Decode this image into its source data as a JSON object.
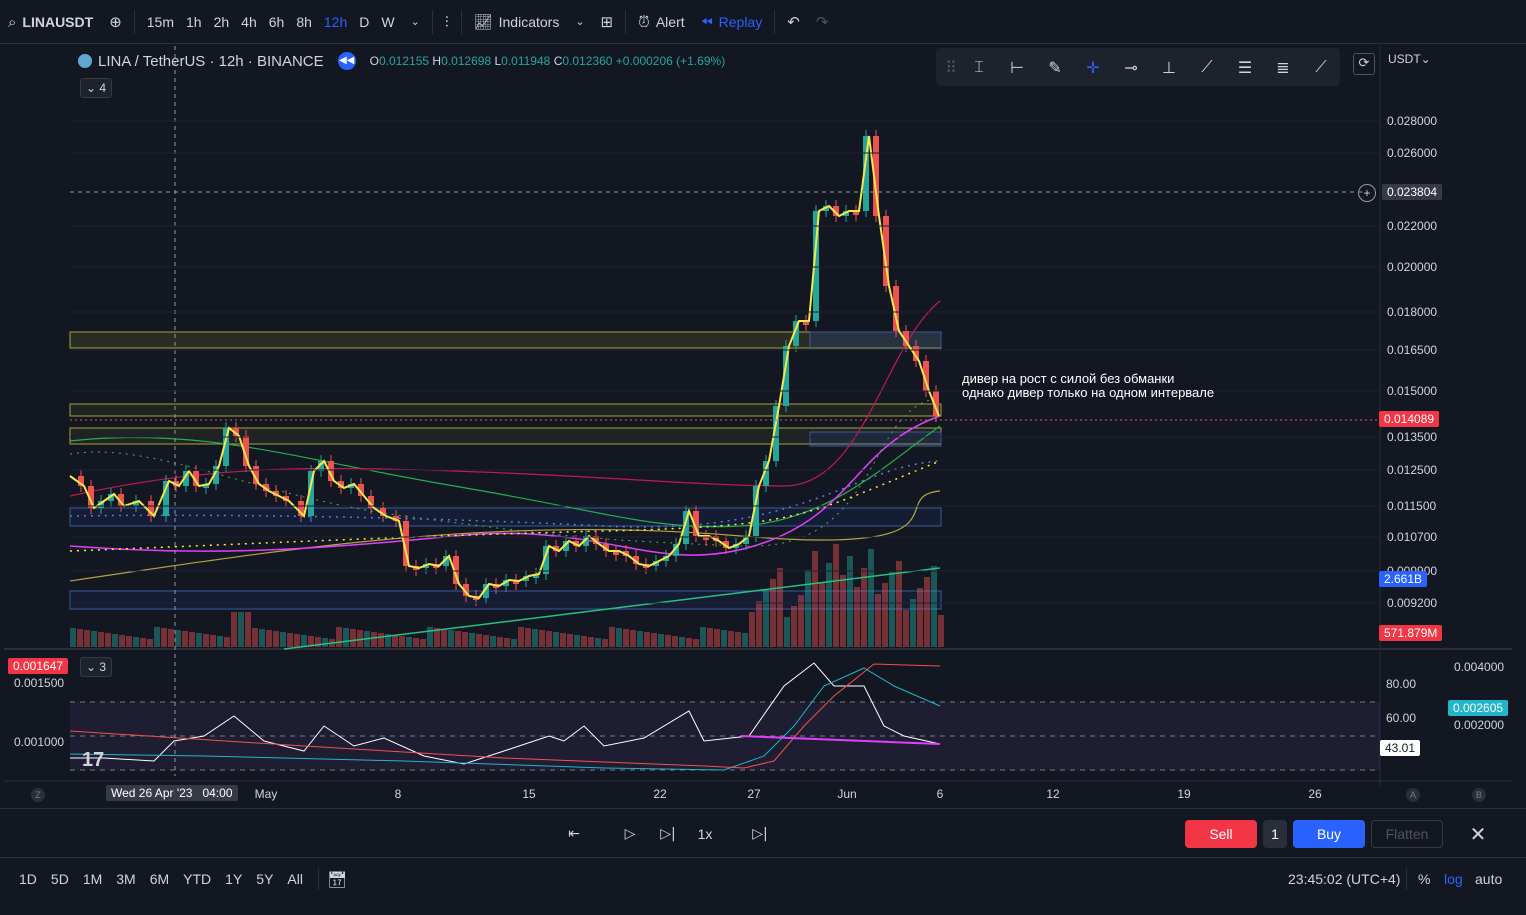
{
  "topbar": {
    "symbol": "LINAUSDT",
    "timeframes": [
      "15m",
      "1h",
      "2h",
      "4h",
      "6h",
      "8h",
      "12h",
      "D",
      "W"
    ],
    "active_timeframe": "12h",
    "indicators_label": "Indicators",
    "alert_label": "Alert",
    "replay_label": "Replay"
  },
  "legend": {
    "title": "LINA / TetherUS · 12h · BINANCE",
    "o_label": "O",
    "o_value": "0.012155",
    "h_label": "H",
    "h_value": "0.012698",
    "l_label": "L",
    "l_value": "0.011948",
    "c_label": "C",
    "c_value": "0.012360",
    "change": "+0.000206 (+1.69%)",
    "collapse_count": "4",
    "sub_collapse_count": "3"
  },
  "price_axis": {
    "currency": "USDT",
    "ticks": [
      "0.028000",
      "0.026000",
      "0.022000",
      "0.020000",
      "0.018000",
      "0.016500",
      "0.015000",
      "0.013500",
      "0.012500",
      "0.011500",
      "0.010700",
      "0.009900",
      "0.009200"
    ],
    "crosshair_value": "0.023804",
    "last_price": "0.014089",
    "volume_ma": "2.661B",
    "volume": "571.879M"
  },
  "sub_axis": {
    "left_badge": "0.001647",
    "left_ticks": [
      "0.001500",
      "0.001000"
    ],
    "right_ticks_top": "0.004000",
    "rsi_ticks": [
      "80.00",
      "60.00"
    ],
    "value_badge": "0.002605",
    "value_tick2": "0.002000",
    "rsi_value": "43.01"
  },
  "time_axis": {
    "labels": [
      "May",
      "8",
      "15",
      "22",
      "27",
      "Jun",
      "6",
      "12",
      "19",
      "26"
    ],
    "crosshair_time": "Wed 26 Apr '23   04:00",
    "left_marker": "Z",
    "right_markers": [
      "A",
      "B"
    ]
  },
  "annotation": {
    "line1": "дивер на рост с силой без обманки",
    "line2": "однако дивер только на одном интервале"
  },
  "replay_controls": {
    "speed": "1x",
    "sell_label": "Sell",
    "qty": "1",
    "buy_label": "Buy",
    "flatten_label": "Flatten"
  },
  "bottombar": {
    "ranges": [
      "1D",
      "5D",
      "1M",
      "3M",
      "6M",
      "YTD",
      "1Y",
      "5Y",
      "All"
    ],
    "clock": "23:45:02 (UTC+4)",
    "percent": "%",
    "log": "log",
    "auto": "auto"
  },
  "colors": {
    "up": "#26a69a",
    "down": "#ef5350",
    "accent": "#2962ff",
    "sell": "#f23645",
    "buy": "#2962ff",
    "yellow_line": "#f5e94a",
    "magenta": "#e040fb"
  }
}
